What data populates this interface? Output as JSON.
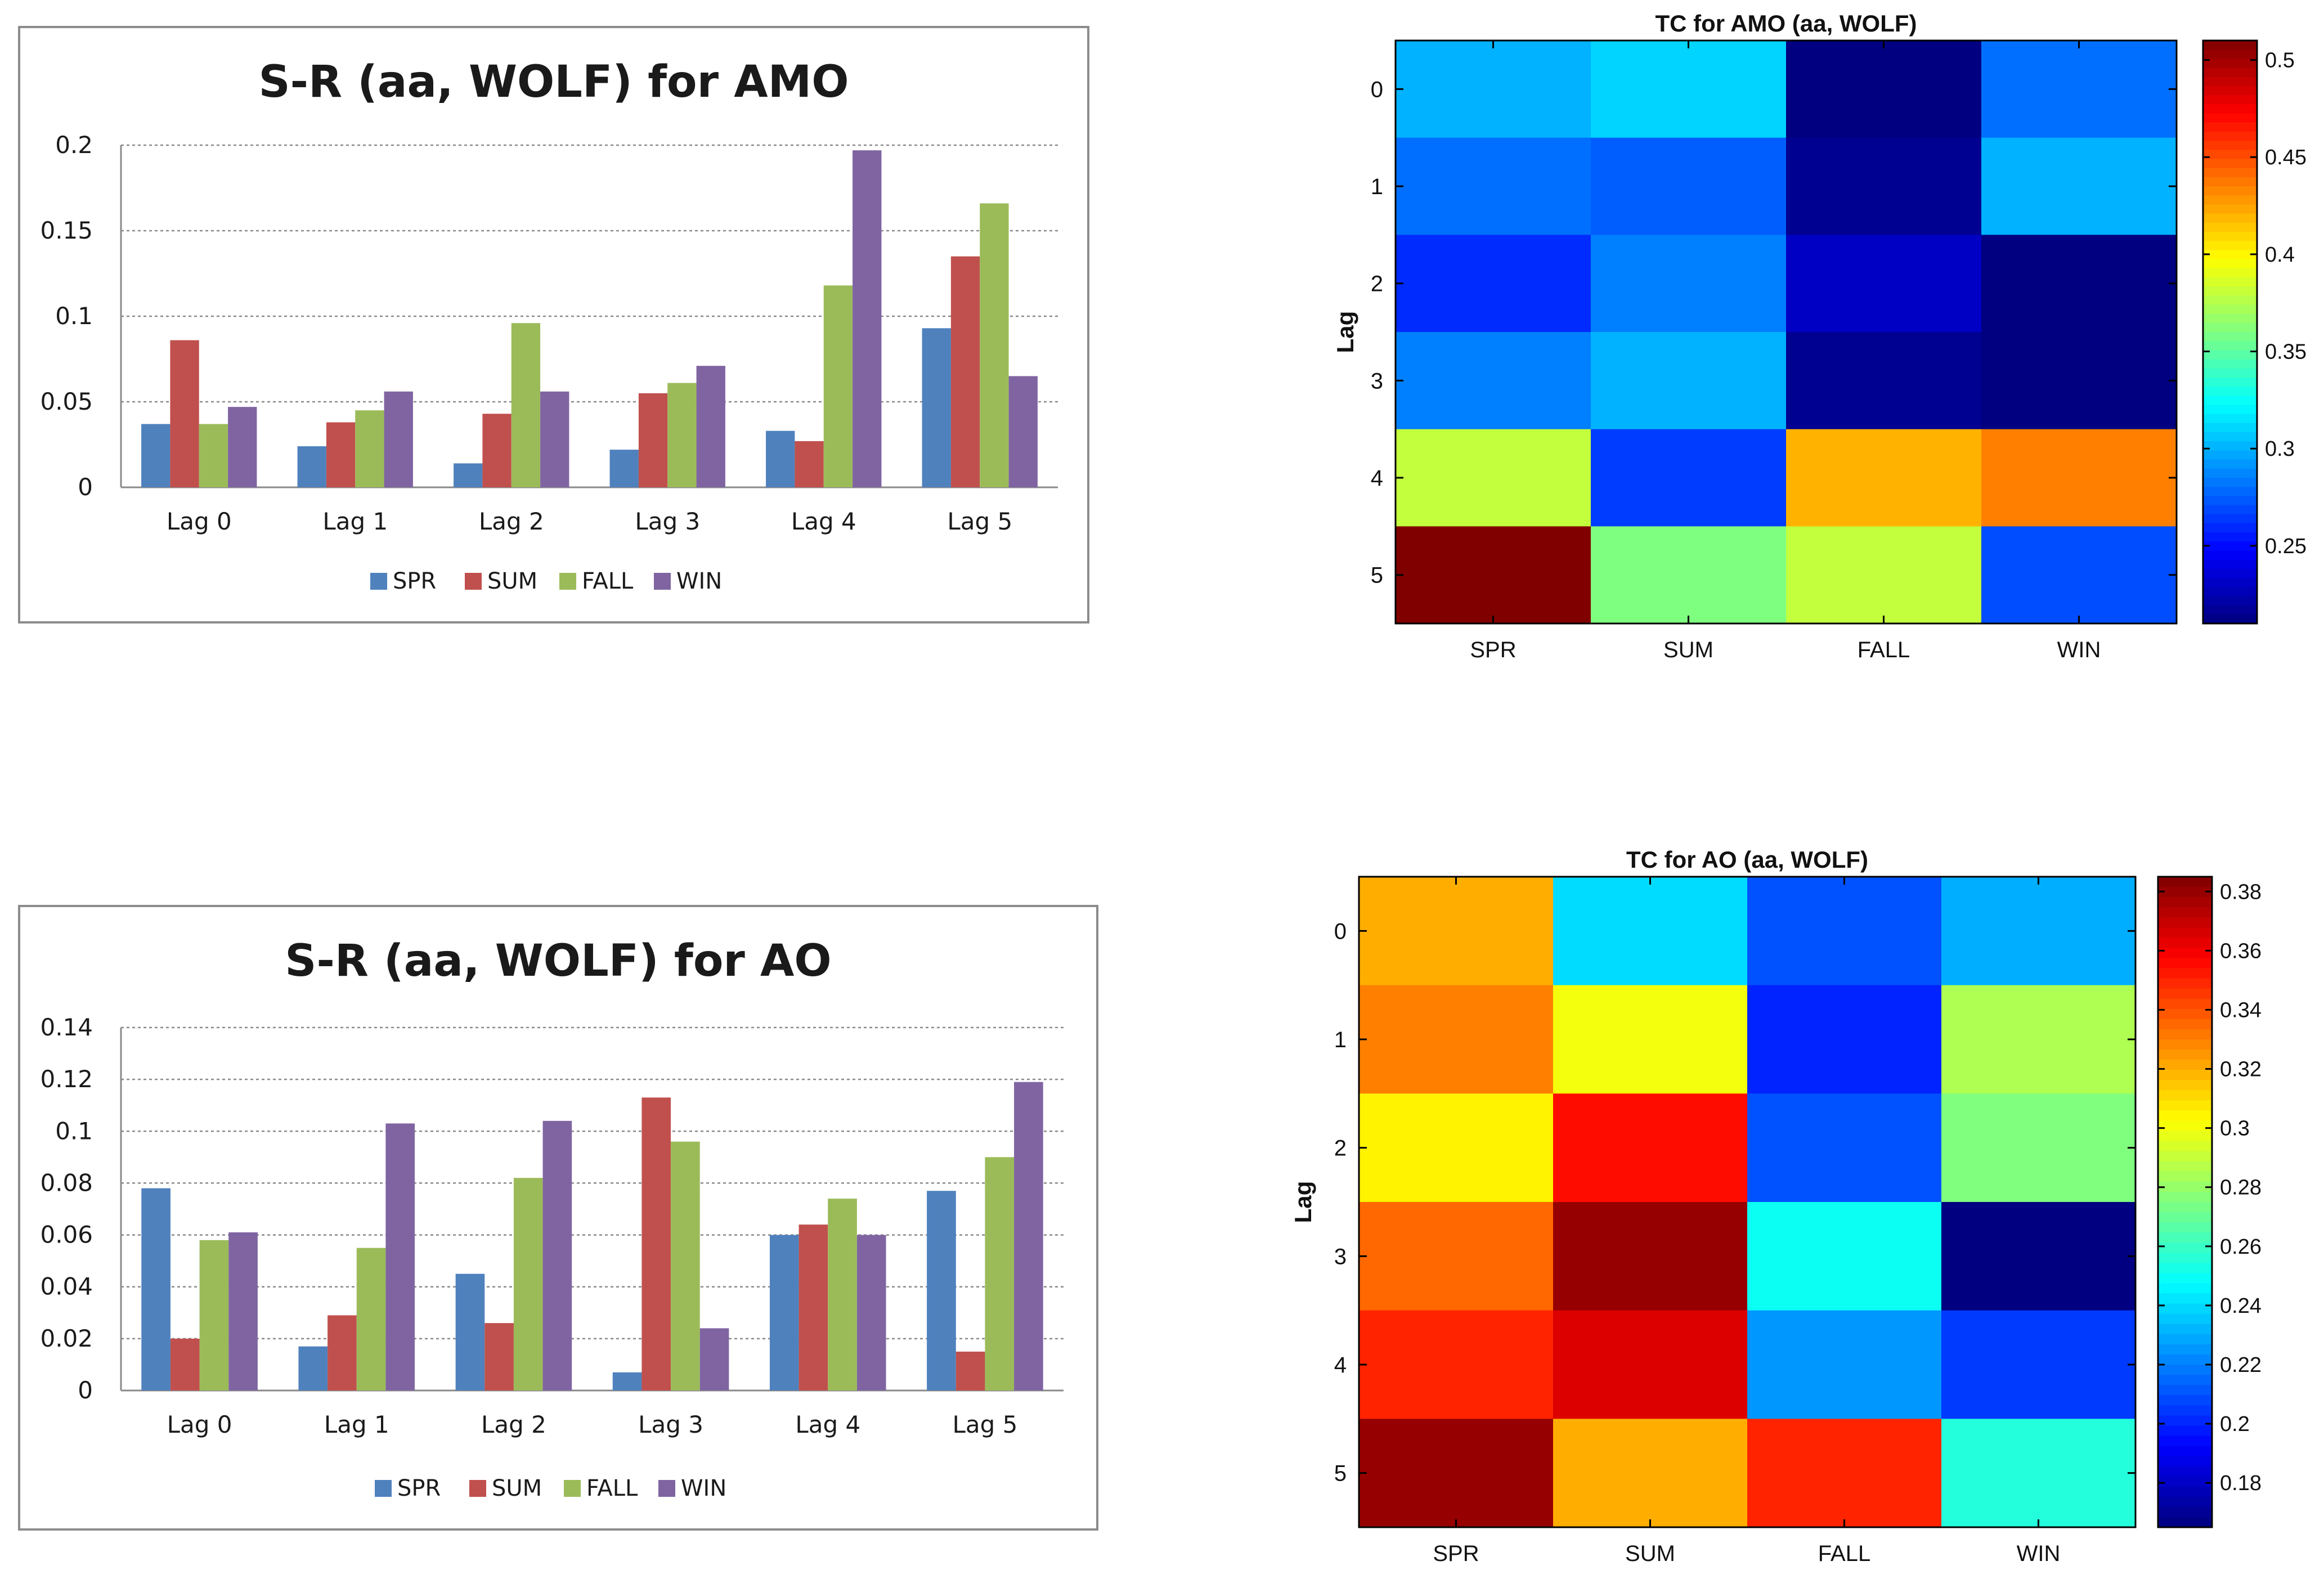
{
  "chart_data": [
    {
      "type": "bar",
      "title": "S-R (aa, WOLF) for AMO",
      "categories": [
        "Lag 0",
        "Lag 1",
        "Lag 2",
        "Lag 3",
        "Lag 4",
        "Lag 5"
      ],
      "series": [
        {
          "name": "SPR",
          "color": "#4f81bd",
          "values": [
            0.037,
            0.024,
            0.014,
            0.022,
            0.033,
            0.093
          ]
        },
        {
          "name": "SUM",
          "color": "#c0504d",
          "values": [
            0.086,
            0.038,
            0.043,
            0.055,
            0.027,
            0.135
          ]
        },
        {
          "name": "FALL",
          "color": "#9bbb59",
          "values": [
            0.037,
            0.045,
            0.096,
            0.061,
            0.118,
            0.166
          ]
        },
        {
          "name": "WIN",
          "color": "#8064a2",
          "values": [
            0.047,
            0.056,
            0.056,
            0.071,
            0.197,
            0.065
          ]
        }
      ],
      "yticks": [
        "0",
        "0.05",
        "0.1",
        "0.15",
        "0.2"
      ],
      "ylim": [
        0,
        0.2
      ],
      "grid": true,
      "legend": "bottom"
    },
    {
      "type": "heatmap",
      "title": "TC for AMO (aa, WOLF)",
      "ylabel": "Lag",
      "x_categories": [
        "SPR",
        "SUM",
        "FALL",
        "WIN"
      ],
      "y_categories": [
        "0",
        "1",
        "2",
        "3",
        "4",
        "5"
      ],
      "values": [
        [
          0.3,
          0.31,
          0.21,
          0.28
        ],
        [
          0.28,
          0.275,
          0.215,
          0.3
        ],
        [
          0.26,
          0.285,
          0.23,
          0.21
        ],
        [
          0.285,
          0.3,
          0.215,
          0.21
        ],
        [
          0.38,
          0.265,
          0.42,
          0.435
        ],
        [
          0.51,
          0.36,
          0.38,
          0.27
        ]
      ],
      "colorbar_min": 0.21,
      "colorbar_max": 0.51,
      "colorbar_ticks": [
        "0.25",
        "0.3",
        "0.35",
        "0.4",
        "0.45",
        "0.5"
      ],
      "colormap": "jet"
    },
    {
      "type": "bar",
      "title": "S-R (aa, WOLF) for AO",
      "categories": [
        "Lag 0",
        "Lag 1",
        "Lag 2",
        "Lag 3",
        "Lag 4",
        "Lag 5"
      ],
      "series": [
        {
          "name": "SPR",
          "color": "#4f81bd",
          "values": [
            0.078,
            0.017,
            0.045,
            0.007,
            0.06,
            0.077
          ]
        },
        {
          "name": "SUM",
          "color": "#c0504d",
          "values": [
            0.02,
            0.029,
            0.026,
            0.113,
            0.064,
            0.015
          ]
        },
        {
          "name": "FALL",
          "color": "#9bbb59",
          "values": [
            0.058,
            0.055,
            0.082,
            0.096,
            0.074,
            0.09
          ]
        },
        {
          "name": "WIN",
          "color": "#8064a2",
          "values": [
            0.061,
            0.103,
            0.104,
            0.024,
            0.06,
            0.119
          ]
        }
      ],
      "yticks": [
        "0",
        "0.02",
        "0.04",
        "0.06",
        "0.08",
        "0.1",
        "0.12",
        "0.14"
      ],
      "ylim": [
        0,
        0.14
      ],
      "grid": true,
      "legend": "bottom"
    },
    {
      "type": "heatmap",
      "title": "TC for AO (aa, WOLF)",
      "ylabel": "Lag",
      "x_categories": [
        "SPR",
        "SUM",
        "FALL",
        "WIN"
      ],
      "y_categories": [
        "0",
        "1",
        "2",
        "3",
        "4",
        "5"
      ],
      "values": [
        [
          0.32,
          0.24,
          0.21,
          0.23
        ],
        [
          0.33,
          0.3,
          0.2,
          0.285
        ],
        [
          0.305,
          0.355,
          0.21,
          0.275
        ],
        [
          0.335,
          0.38,
          0.25,
          0.165
        ],
        [
          0.35,
          0.365,
          0.225,
          0.205
        ],
        [
          0.38,
          0.32,
          0.35,
          0.255
        ]
      ],
      "colorbar_min": 0.165,
      "colorbar_max": 0.385,
      "colorbar_ticks": [
        "0.18",
        "0.2",
        "0.22",
        "0.24",
        "0.26",
        "0.28",
        "0.3",
        "0.32",
        "0.34",
        "0.36",
        "0.38"
      ],
      "colormap": "jet"
    }
  ]
}
